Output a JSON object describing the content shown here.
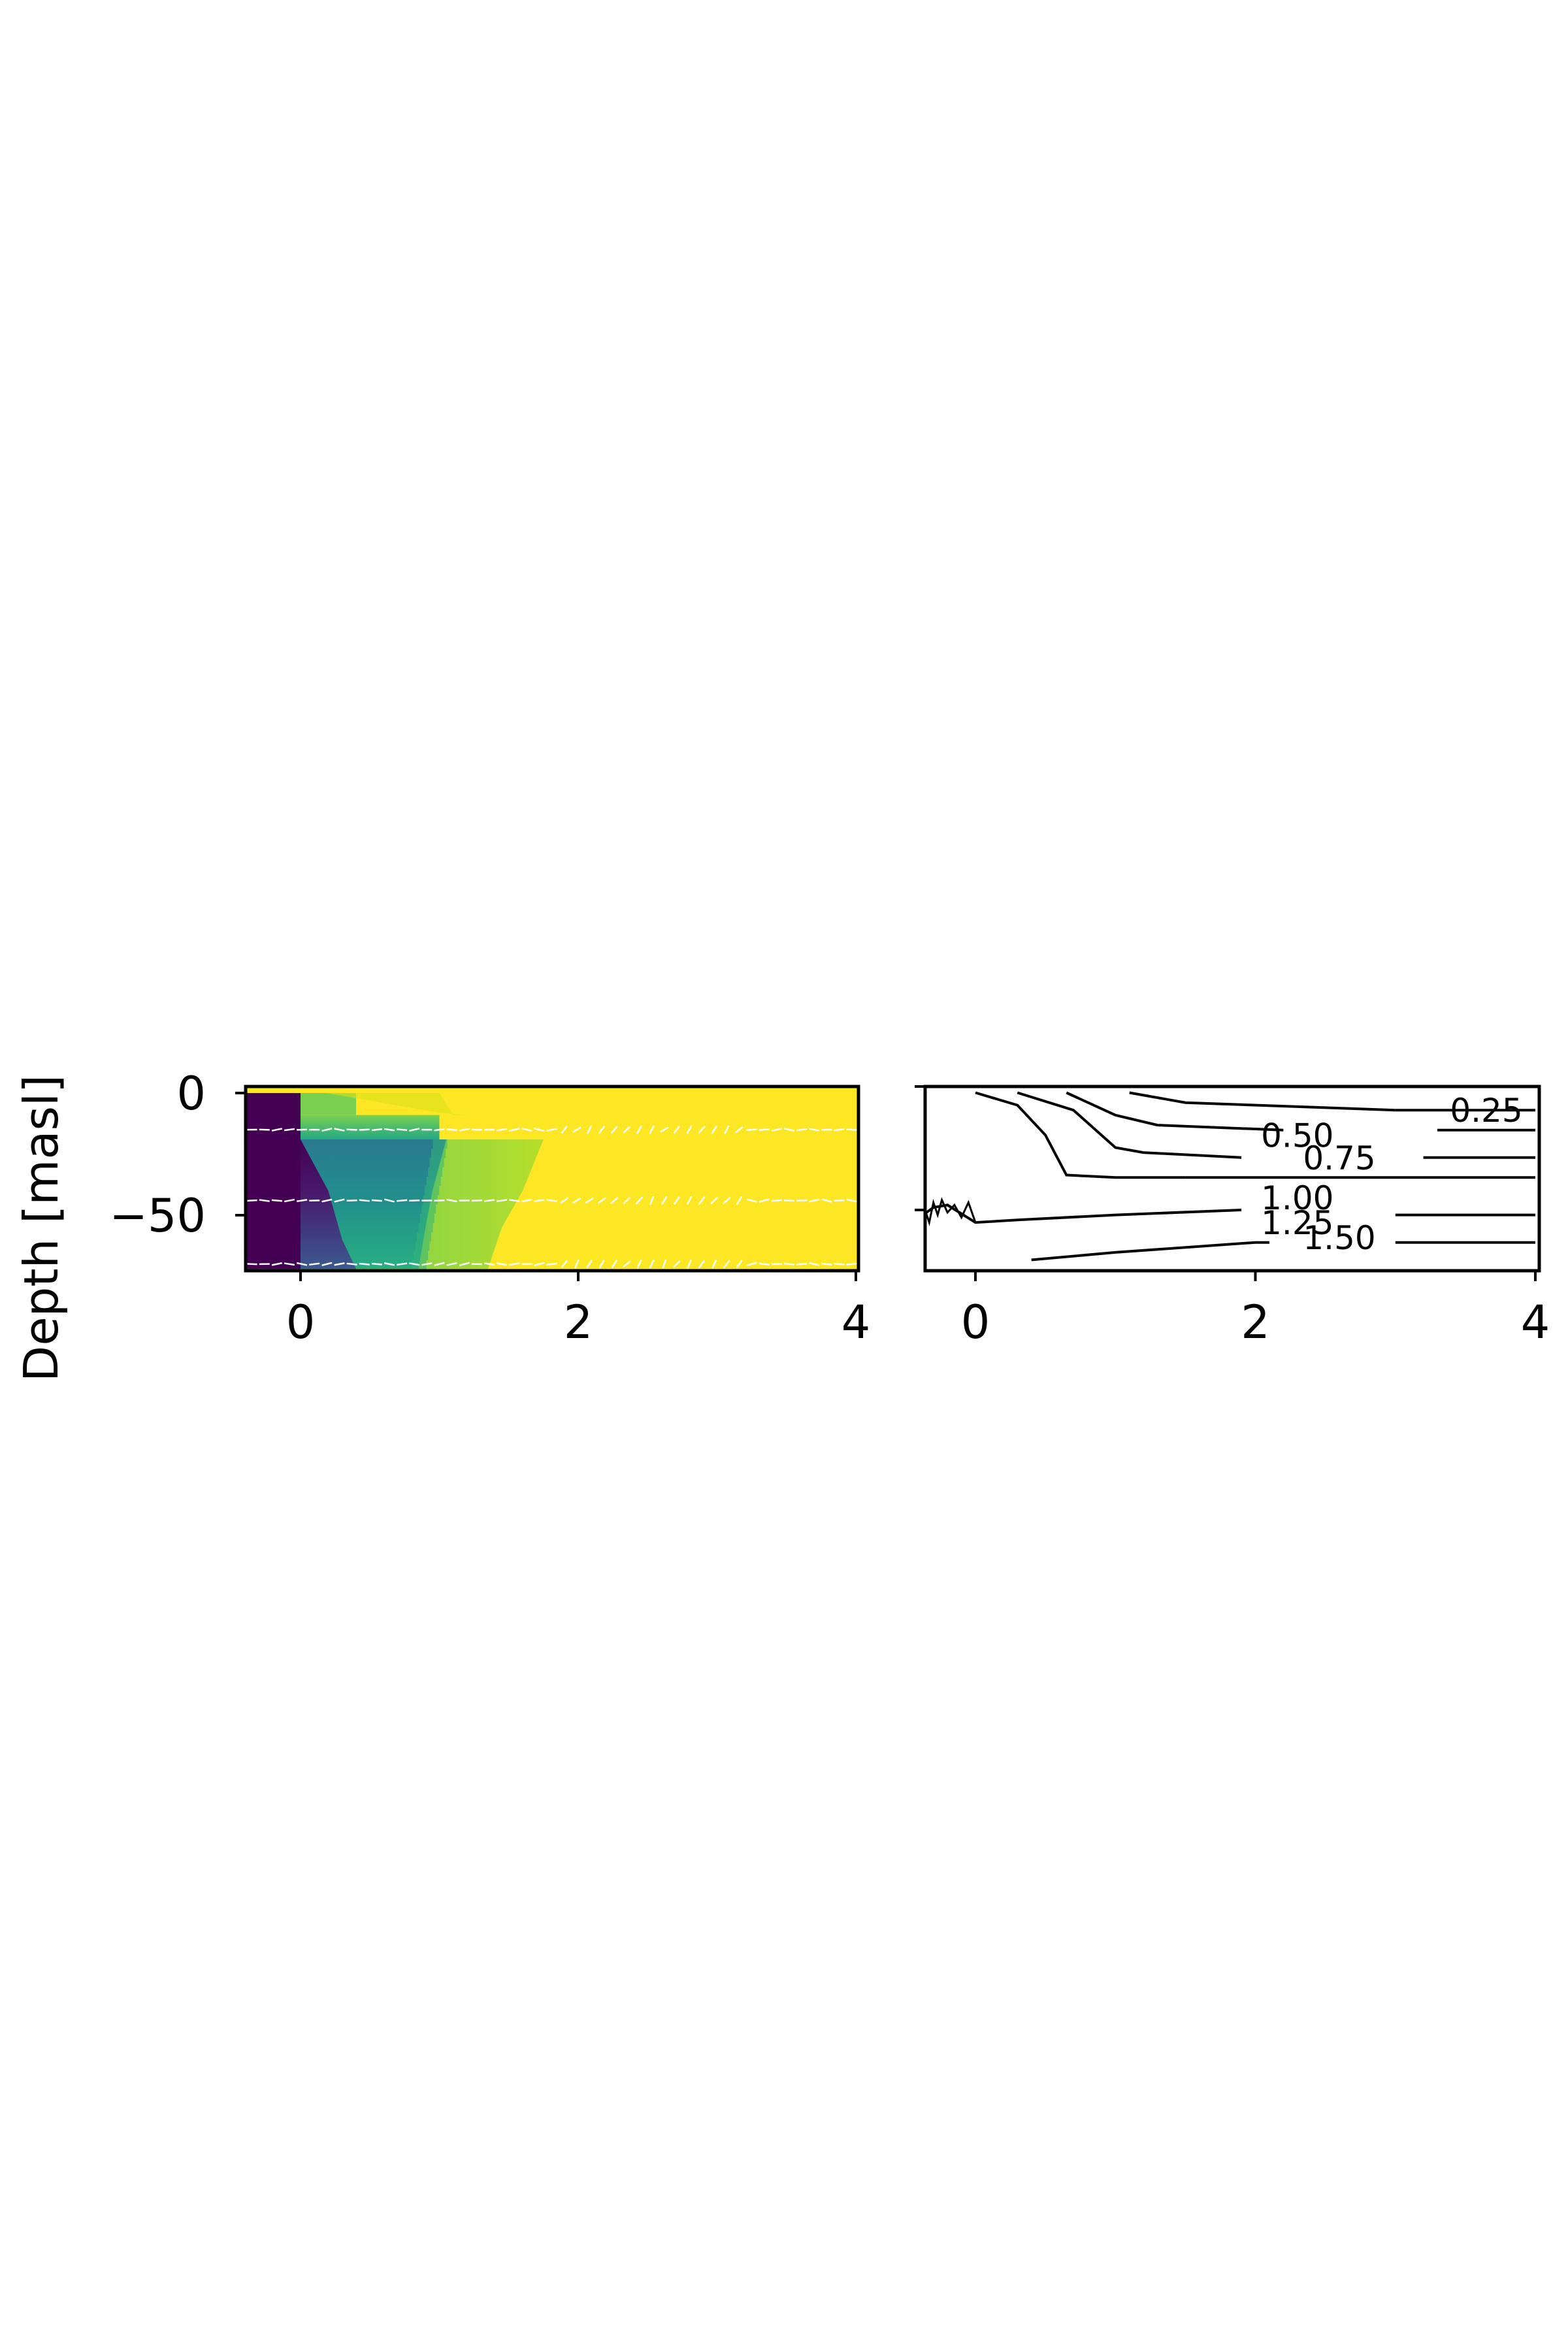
{
  "chart_data": [
    {
      "type": "heatmap",
      "ylabel": "Depth [masl]",
      "xlim": [
        -0.2,
        4
      ],
      "ylim": [
        -72,
        0
      ],
      "x_ticks": [
        0,
        2,
        4
      ],
      "y_ticks": [
        0,
        -50
      ],
      "colormap": "viridis",
      "colors": {
        "low": "#440154",
        "mid": "#21918c",
        "high": "#fde725",
        "quiver": "#ffffff"
      },
      "regions": [
        {
          "x_start": -0.4,
          "x_end": 0.0,
          "y_top": 0,
          "y_bottom": -72,
          "value": 0.02
        },
        {
          "x_start": 0.0,
          "x_end": 0.4,
          "y_top": 0,
          "y_bottom": -9,
          "value": 0.75
        },
        {
          "x_start": 0.0,
          "x_end": 1.0,
          "y_top": -9,
          "y_bottom": -19,
          "value": 0.55
        }
      ],
      "front_boundaries": [
        {
          "name": "purple_to_teal",
          "points": [
            [
              0.0,
              -19
            ],
            [
              0.2,
              -40
            ],
            [
              0.3,
              -60
            ],
            [
              0.4,
              -72
            ]
          ]
        },
        {
          "name": "teal_to_green",
          "points": [
            [
              1.05,
              -19
            ],
            [
              0.95,
              -40
            ],
            [
              0.9,
              -55
            ],
            [
              0.85,
              -72
            ]
          ]
        },
        {
          "name": "green_to_yellow",
          "points": [
            [
              1.75,
              -19
            ],
            [
              1.6,
              -40
            ],
            [
              1.45,
              -55
            ],
            [
              1.35,
              -72
            ]
          ]
        }
      ],
      "quiver_rows": [
        -15,
        -44,
        -70
      ],
      "top_yellow_edge": [
        [
          0.0,
          0
        ],
        [
          0.2,
          -2
        ],
        [
          0.5,
          -5
        ],
        [
          0.8,
          -8
        ],
        [
          1.0,
          -9
        ]
      ]
    },
    {
      "type": "contour",
      "xlim": [
        -0.4,
        4
      ],
      "ylim": [
        -72,
        0
      ],
      "x_ticks": [
        0,
        2,
        4
      ],
      "y_ticks": [
        0,
        -50
      ],
      "levels": [
        {
          "label": "0.25",
          "left": [
            [
              0.0,
              -3
            ],
            [
              0.3,
              -8
            ],
            [
              0.5,
              -20
            ],
            [
              0.65,
              -36
            ],
            [
              1.0,
              -37
            ],
            [
              1.5,
              -37
            ]
          ],
          "right": [
            [
              1.5,
              -37
            ],
            [
              4.0,
              -37
            ]
          ]
        },
        {
          "label": "0.50",
          "left": [
            [
              0.3,
              -3
            ],
            [
              0.7,
              -10
            ],
            [
              1.0,
              -25
            ],
            [
              1.2,
              -27
            ],
            [
              1.9,
              -29
            ]
          ],
          "right": [
            [
              3.2,
              -29
            ],
            [
              4.0,
              -29
            ]
          ]
        },
        {
          "label": "0.75",
          "left": [
            [
              0.65,
              -3
            ],
            [
              1.0,
              -12
            ],
            [
              1.3,
              -16
            ],
            [
              2.2,
              -18
            ]
          ],
          "right": [
            [
              3.3,
              -18
            ],
            [
              4.0,
              -18
            ]
          ]
        },
        {
          "label": "1.00",
          "left": [
            [
              1.1,
              -3
            ],
            [
              1.5,
              -7
            ],
            [
              2.5,
              -9
            ],
            [
              3.0,
              -10
            ]
          ],
          "right": [
            [
              3.0,
              -10
            ],
            [
              4.0,
              -10
            ]
          ]
        },
        {
          "label": "1.25",
          "left": [
            [
              -0.4,
              -53
            ],
            [
              -0.3,
              -49
            ],
            [
              -0.2,
              -48
            ],
            [
              0.0,
              -55
            ],
            [
              0.3,
              -54
            ],
            [
              1.0,
              -52
            ],
            [
              1.9,
              -50
            ]
          ],
          "right": [
            [
              3.0,
              -52
            ],
            [
              4.0,
              -52
            ]
          ]
        },
        {
          "label": "1.50",
          "left": [
            [
              0.4,
              -70
            ],
            [
              1.0,
              -67
            ],
            [
              2.0,
              -63
            ],
            [
              2.1,
              -63
            ]
          ],
          "right": [
            [
              3.0,
              -63
            ],
            [
              4.0,
              -63
            ]
          ]
        }
      ],
      "label_positions": [
        {
          "label": "0.25",
          "x": 3.65,
          "y": -10
        },
        {
          "label": "0.50",
          "x": 2.3,
          "y": -20
        },
        {
          "label": "0.75",
          "x": 2.6,
          "y": -29
        },
        {
          "label": "1.00",
          "x": 2.3,
          "y": -45
        },
        {
          "label": "1.25",
          "x": 2.3,
          "y": -55
        },
        {
          "label": "1.50",
          "x": 2.6,
          "y": -61
        }
      ]
    }
  ]
}
